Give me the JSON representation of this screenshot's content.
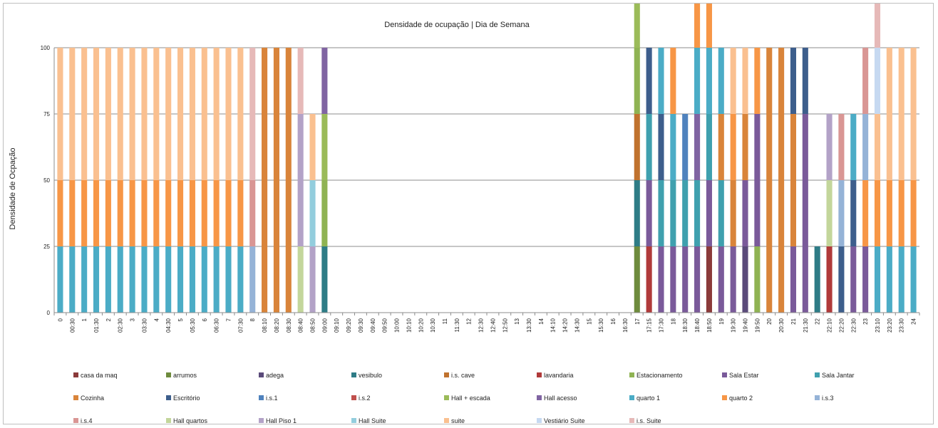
{
  "chart_data": {
    "type": "bar",
    "stacked": true,
    "title": "Densidade de ocupação | Dia de Semana",
    "xlabel": "",
    "ylabel": "Densidade de Ocpação",
    "ylim": [
      0,
      100
    ],
    "yticks": [
      0,
      25,
      50,
      75,
      100
    ],
    "grid": true,
    "legend_position": "bottom",
    "categories": [
      "0",
      "00:30",
      "1",
      "01:30",
      "2",
      "02:30",
      "3",
      "03:30",
      "4",
      "04:30",
      "5",
      "05:30",
      "6",
      "06:30",
      "7",
      "07:30",
      "8",
      "08:10",
      "08:20",
      "08:30",
      "08:40",
      "08:50",
      "09:00",
      "09:10",
      "09:20",
      "09:30",
      "09:40",
      "09:50",
      "10:00",
      "10:10",
      "10:20",
      "10:30",
      "11",
      "11:30",
      "12",
      "12:30",
      "12:40",
      "12:50",
      "13",
      "13:30",
      "14",
      "14:10",
      "14:20",
      "14:30",
      "15",
      "15:30",
      "16",
      "16:30",
      "17",
      "17:15",
      "17:30",
      "18",
      "18:30",
      "18:40",
      "18:50",
      "19",
      "19:30",
      "19:40",
      "19:50",
      "20",
      "20:30",
      "21",
      "21:30",
      "22",
      "22:10",
      "22:20",
      "22:30",
      "23",
      "23:10",
      "23:20",
      "23:30",
      "24"
    ],
    "series": [
      {
        "name": "casa da maq",
        "color": "#8B3A3A",
        "values": {
          "54": 25
        }
      },
      {
        "name": "arrumos",
        "color": "#6E8B3D",
        "values": {
          "48": 25
        }
      },
      {
        "name": "adega",
        "color": "#5A4A7A",
        "values": {
          "57": 25
        }
      },
      {
        "name": "vesibulo",
        "color": "#2E7C86",
        "values": {
          "22": 25,
          "48": 25,
          "63": 25
        }
      },
      {
        "name": "i.s. cave",
        "color": "#C0722E",
        "values": {
          "48": 25
        }
      },
      {
        "name": "lavandaria",
        "color": "#B03A3A",
        "values": {
          "49": 25,
          "64": 25
        }
      },
      {
        "name": "Estacionamento",
        "color": "#8FB353",
        "values": {
          "22": 25,
          "48": 25,
          "58": 25
        }
      },
      {
        "name": "Sala Estar",
        "color": "#7A5A9A",
        "values": {
          "49": 25,
          "50": 25,
          "51": 25,
          "52": 25,
          "53": 25,
          "54": 25,
          "55": 25,
          "56": 25,
          "57": 25,
          "58": 50,
          "61": 25,
          "62": 75,
          "66": 25,
          "67": 25
        }
      },
      {
        "name": "Sala Jantar",
        "color": "#3FA0AE",
        "values": {
          "49": 25,
          "50": 25,
          "51": 25,
          "52": 25,
          "53": 25,
          "54": 25,
          "55": 25
        }
      },
      {
        "name": "Cozinha",
        "color": "#D9843A",
        "values": {
          "17": 100,
          "18": 100,
          "19": 100,
          "55": 25,
          "56": 25,
          "57": 25,
          "59": 100,
          "60": 100,
          "61": 50
        }
      },
      {
        "name": "Escritório",
        "color": "#3D5E8C",
        "values": {
          "49": 25,
          "50": 25,
          "61": 25,
          "62": 25,
          "66": 25,
          "65": 25
        }
      },
      {
        "name": "i.s.1",
        "color": "#4F82BD",
        "values": {
          "52": 25
        }
      },
      {
        "name": "i.s.2",
        "color": "#C0504D",
        "values": {}
      },
      {
        "name": "Hall + escada",
        "color": "#9BBB59",
        "values": {
          "22": 25,
          "48": 25
        }
      },
      {
        "name": "Hall acesso",
        "color": "#8064A2",
        "values": {
          "22": 25,
          "53": 25
        }
      },
      {
        "name": "quarto 1",
        "color": "#4BACC6",
        "values": {
          "0": 25,
          "1": 25,
          "2": 25,
          "3": 25,
          "4": 25,
          "5": 25,
          "6": 25,
          "7": 25,
          "8": 25,
          "9": 25,
          "10": 25,
          "11": 25,
          "12": 25,
          "13": 25,
          "14": 25,
          "15": 25,
          "50": 25,
          "51": 25,
          "53": 25,
          "54": 25,
          "55": 25,
          "66": 25,
          "68": 25,
          "69": 25,
          "70": 25,
          "71": 25
        }
      },
      {
        "name": "quarto 2",
        "color": "#F79646",
        "values": {
          "0": 25,
          "1": 25,
          "2": 25,
          "3": 25,
          "4": 25,
          "5": 25,
          "6": 25,
          "7": 25,
          "8": 25,
          "9": 25,
          "10": 25,
          "11": 25,
          "12": 25,
          "13": 25,
          "14": 25,
          "15": 25,
          "51": 25,
          "53": 25,
          "54": 25,
          "56": 25,
          "58": 25,
          "67": 25,
          "68": 25,
          "69": 25,
          "70": 25,
          "71": 25
        }
      },
      {
        "name": "i.s.3",
        "color": "#95B3D7",
        "values": {
          "16": 25,
          "65": 25,
          "67": 25
        }
      },
      {
        "name": "i.s.4",
        "color": "#D99694",
        "values": {
          "16": 25,
          "65": 25,
          "67": 25
        }
      },
      {
        "name": "Hall quartos",
        "color": "#C3D69B",
        "values": {
          "20": 25,
          "64": 25
        }
      },
      {
        "name": "Hall Piso 1",
        "color": "#B3A2C7",
        "values": {
          "20": 50,
          "21": 25,
          "64": 25
        }
      },
      {
        "name": "Hall Suite",
        "color": "#93CDDD",
        "values": {
          "21": 25
        }
      },
      {
        "name": "suite",
        "color": "#FAC090",
        "values": {
          "0": 50,
          "1": 50,
          "2": 50,
          "3": 50,
          "4": 50,
          "5": 50,
          "6": 50,
          "7": 50,
          "8": 50,
          "9": 50,
          "10": 50,
          "11": 50,
          "12": 50,
          "13": 50,
          "14": 50,
          "15": 50,
          "21": 25,
          "56": 25,
          "57": 25,
          "68": 25,
          "69": 50,
          "70": 50,
          "71": 50
        }
      },
      {
        "name": "Vestiário Suite",
        "color": "#C6D9F1",
        "values": {
          "68": 25
        }
      },
      {
        "name": "i.s. Suite",
        "color": "#E6B9B8",
        "values": {
          "16": 50,
          "20": 25,
          "68": 25
        }
      }
    ]
  }
}
